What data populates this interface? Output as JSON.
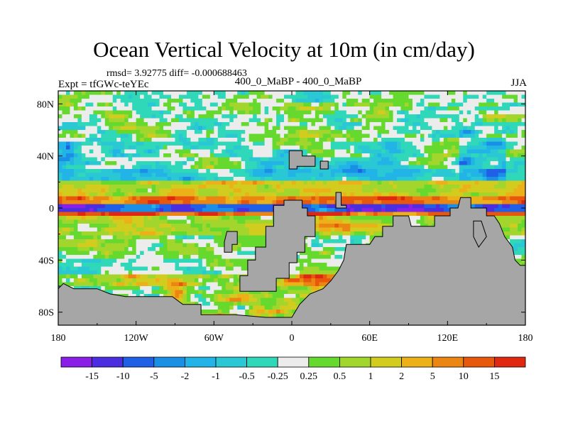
{
  "chart_data": {
    "type": "heatmap",
    "title": "Ocean Vertical Velocity at 10m (in cm/day)",
    "stats_text": "rmsd= 3.92775  diff= -0.000688463",
    "left_label": "Expt = tfGWc-teYEc",
    "center_label": "400_0_MaBP - 400_0_MaBP",
    "right_label": "JJA",
    "xlim": [
      -180,
      180
    ],
    "ylim": [
      -90,
      90
    ],
    "x_ticks": [
      {
        "value": -180,
        "label": "180"
      },
      {
        "value": -120,
        "label": "120W"
      },
      {
        "value": -60,
        "label": "60W"
      },
      {
        "value": 0,
        "label": "0"
      },
      {
        "value": 60,
        "label": "60E"
      },
      {
        "value": 120,
        "label": "120E"
      },
      {
        "value": 180,
        "label": "180"
      }
    ],
    "y_ticks": [
      {
        "value": 80,
        "label": "80N"
      },
      {
        "value": 40,
        "label": "40N"
      },
      {
        "value": 0,
        "label": "0"
      },
      {
        "value": -40,
        "label": "40S"
      },
      {
        "value": -80,
        "label": "80S"
      }
    ],
    "colorbar": {
      "levels": [
        "-15",
        "-10",
        "-5",
        "-2",
        "-1",
        "-0.5",
        "-0.25",
        "0.25",
        "0.5",
        "1",
        "2",
        "5",
        "10",
        "15"
      ],
      "colors": [
        "#8a1fe8",
        "#4a2ee0",
        "#1f60e6",
        "#1a8fe6",
        "#22b4e6",
        "#2ac8d4",
        "#2fd8b8",
        "#ececec",
        "#66d92e",
        "#a2d62c",
        "#d2cc1e",
        "#ecb018",
        "#ec8612",
        "#e8580c",
        "#e02810"
      ]
    },
    "bands": [
      {
        "lat_min": 80,
        "lat_max": 90,
        "dominant": "-0.5 to 0.5",
        "pattern": "mixed cyan, green, white"
      },
      {
        "lat_min": 50,
        "lat_max": 80,
        "dominant": "-0.25 to 1",
        "pattern": "white and green patches with blue streaks"
      },
      {
        "lat_min": 30,
        "lat_max": 50,
        "dominant": "-1 to 2",
        "pattern": "cyan and green mix"
      },
      {
        "lat_min": 20,
        "lat_max": 30,
        "dominant": "-2 to -0.5",
        "pattern": "cyan/blue band"
      },
      {
        "lat_min": 10,
        "lat_max": 20,
        "dominant": "0.5 to 5",
        "pattern": "green/yellow/orange band"
      },
      {
        "lat_min": 4,
        "lat_max": 10,
        "dominant": "2 to 15",
        "pattern": "orange/red band"
      },
      {
        "lat_min": -2,
        "lat_max": 4,
        "dominant": "-15 to -5",
        "pattern": "equatorial blue/purple band"
      },
      {
        "lat_min": -6,
        "lat_max": -2,
        "dominant": "5 to 15",
        "pattern": "red band"
      },
      {
        "lat_min": -20,
        "lat_max": -6,
        "dominant": "0.5 to 2",
        "pattern": "green/yellow"
      },
      {
        "lat_min": -50,
        "lat_max": -20,
        "dominant": "-0.25 to 0.5",
        "pattern": "white and green patches"
      },
      {
        "lat_min": -60,
        "lat_max": -50,
        "dominant": "1 to 10",
        "pattern": "green/orange with blue patches"
      },
      {
        "lat_min": -75,
        "lat_max": -60,
        "dominant": "-1 to 5",
        "pattern": "mixed near Antarctic margin"
      }
    ],
    "land_color": "#a6a6a6"
  }
}
